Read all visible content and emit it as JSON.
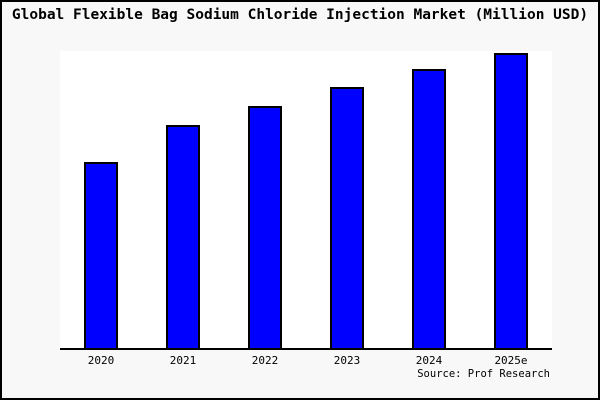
{
  "chart_data": {
    "type": "bar",
    "title": "Global Flexible Bag Sodium Chloride Injection Market (Million USD)",
    "categories": [
      "2020",
      "2021",
      "2022",
      "2023",
      "2024",
      "2025e"
    ],
    "values": [
      62.9,
      75.6,
      82.0,
      88.5,
      94.6,
      100.0
    ],
    "values_note": "Y-axis is unlabeled in the chart; values are relative bar heights as % of the tallest (2025e) bar",
    "xlabel": "",
    "ylabel": "",
    "ylim": [
      0,
      100
    ],
    "grid": false,
    "legend": null,
    "bar_color": "#0000ff",
    "bar_border_color": "#000000",
    "axis_color": "#000000",
    "plot_background": "#ffffff",
    "figure_background": "#f8f8f8",
    "source_note": "Source: Prof Research"
  }
}
